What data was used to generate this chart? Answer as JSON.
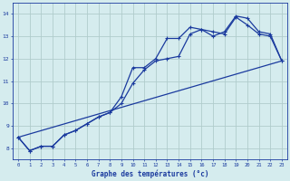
{
  "title": "",
  "xlabel": "Graphe des températures (°c)",
  "bg_color": "#d5ecee",
  "grid_color": "#b0cccc",
  "line_color": "#1a3a9e",
  "xlim": [
    -0.5,
    23.5
  ],
  "ylim": [
    7.5,
    14.5
  ],
  "xticks": [
    0,
    1,
    2,
    3,
    4,
    5,
    6,
    7,
    8,
    9,
    10,
    11,
    12,
    13,
    14,
    15,
    16,
    17,
    18,
    19,
    20,
    21,
    22,
    23
  ],
  "yticks": [
    8,
    9,
    10,
    11,
    12,
    13,
    14
  ],
  "line_smooth": {
    "x": [
      0,
      1,
      2,
      3,
      4,
      5,
      6,
      7,
      8,
      9,
      10,
      11,
      12,
      13,
      14,
      15,
      16,
      17,
      18,
      19,
      20,
      21,
      22,
      23
    ],
    "y": [
      8.5,
      7.9,
      8.1,
      8.1,
      8.6,
      8.8,
      9.1,
      9.4,
      9.6,
      10.0,
      10.9,
      11.5,
      11.9,
      12.0,
      12.1,
      13.1,
      13.3,
      13.0,
      13.2,
      13.9,
      13.8,
      13.2,
      13.1,
      11.9
    ]
  },
  "line_spiky": {
    "x": [
      0,
      1,
      2,
      3,
      4,
      5,
      6,
      7,
      8,
      9,
      10,
      11,
      12,
      13,
      14,
      15,
      16,
      17,
      18,
      19,
      20,
      21,
      22,
      23
    ],
    "y": [
      8.5,
      7.9,
      8.1,
      8.1,
      8.6,
      8.8,
      9.1,
      9.4,
      9.6,
      10.3,
      11.6,
      11.6,
      12.0,
      12.9,
      12.9,
      13.4,
      13.3,
      13.2,
      13.1,
      13.85,
      13.5,
      13.1,
      13.0,
      11.9
    ]
  },
  "line_straight": {
    "x": [
      0,
      23
    ],
    "y": [
      8.5,
      11.9
    ]
  }
}
